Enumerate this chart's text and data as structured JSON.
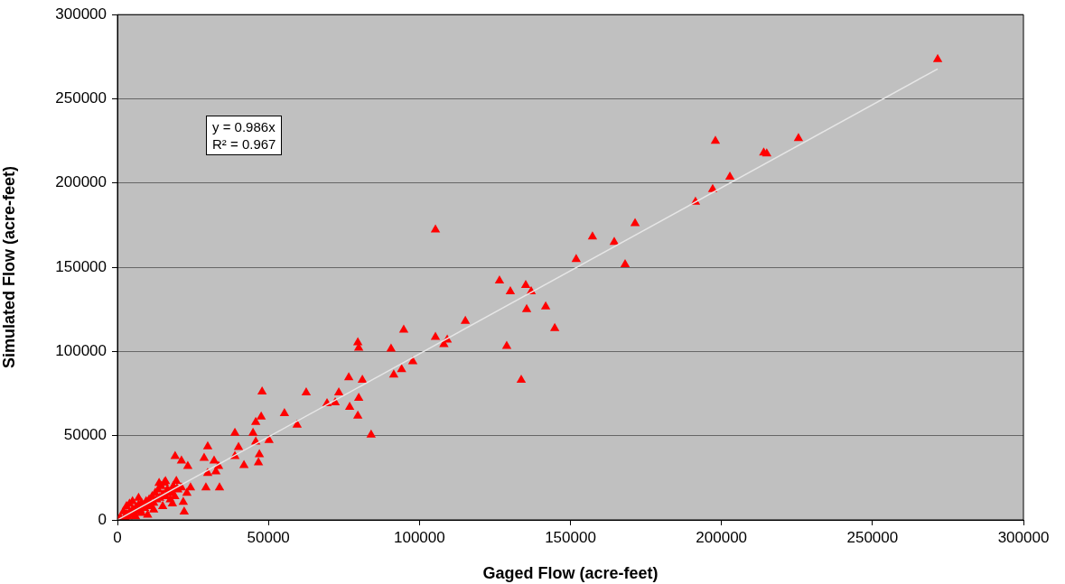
{
  "chart_data": {
    "type": "scatter",
    "xlabel": "Gaged Flow (acre-feet)",
    "ylabel": "Simulated Flow (acre-feet)",
    "annotations": [
      "y = 0.986x",
      "R² = 0.967"
    ],
    "xlim": [
      0,
      300000
    ],
    "xticks": [
      0,
      50000,
      100000,
      150000,
      200000,
      250000,
      300000
    ],
    "ylim": [
      0,
      300000
    ],
    "yticks": [
      0,
      50000,
      100000,
      150000,
      200000,
      250000,
      300000
    ],
    "grid": "y",
    "legend": false,
    "marker": "triangle",
    "series": [
      {
        "color": "#ff0000",
        "x": [
          271600,
          225500,
          198000,
          215000,
          214000,
          202800,
          197100,
          191400,
          171400,
          157300,
          164500,
          168100,
          151900,
          105300,
          126500,
          135200,
          130100,
          137000,
          141800,
          135500,
          144800,
          115200,
          94800,
          105300,
          109200,
          108100,
          128900,
          79600,
          79900,
          90600,
          97800,
          94100,
          91500,
          133700,
          76600,
          81100,
          47900,
          62500,
          73300,
          69400,
          72100,
          79900,
          76900,
          55300,
          47600,
          79600,
          45800,
          59500,
          38900,
          84000,
          44900,
          50200,
          45800,
          40100,
          29900,
          47000,
          38900,
          19100,
          21200,
          28700,
          32000,
          46700,
          41900,
          33500,
          23300,
          32600,
          29900,
          33800,
          29300,
          24200,
          21200,
          23000,
          22100,
          21800,
          13800,
          18200,
          15900,
          16800,
          19700,
          500,
          1000,
          2500,
          3000,
          3500,
          4000,
          4500,
          5000,
          5500,
          6000,
          6500,
          7000,
          7500,
          8000,
          9000,
          9500,
          10000,
          10500,
          11000,
          11500,
          12000,
          12500,
          13000,
          13500,
          14000,
          14500,
          15000,
          15500,
          16000,
          16500,
          17000,
          17500,
          18000,
          18500,
          19000,
          19500,
          20000,
          3000,
          5000,
          8000,
          10000,
          12000,
          15000,
          6000,
          2000,
          4000,
          7000
        ],
        "values": [
          273400,
          226600,
          225000,
          217500,
          218000,
          203700,
          196300,
          188800,
          176000,
          168100,
          164900,
          151600,
          154800,
          172300,
          142000,
          139400,
          135600,
          135600,
          126600,
          125000,
          113800,
          118100,
          112800,
          108500,
          106900,
          104300,
          103200,
          105300,
          102100,
          101600,
          94100,
          89400,
          86200,
          83000,
          84600,
          83000,
          76100,
          75500,
          75500,
          69100,
          69700,
          72300,
          67000,
          63300,
          61200,
          61700,
          58000,
          56400,
          51600,
          50500,
          51600,
          47300,
          46300,
          43100,
          43600,
          38800,
          37800,
          37800,
          35100,
          36700,
          35100,
          34000,
          32400,
          31900,
          31900,
          28700,
          27700,
          19100,
          19100,
          19100,
          19100,
          16000,
          4800,
          10600,
          21800,
          9600,
          22900,
          16000,
          18600,
          300,
          1200,
          1500,
          3500,
          2000,
          4500,
          3000,
          6000,
          4000,
          7000,
          5000,
          9000,
          6000,
          10000,
          7000,
          11000,
          9000,
          12000,
          8000,
          14000,
          10000,
          16000,
          12000,
          18000,
          13000,
          20000,
          15000,
          22000,
          14000,
          18000,
          17000,
          12000,
          16000,
          20000,
          14000,
          23000,
          18000,
          8000,
          11000,
          4000,
          3000,
          6000,
          8000,
          2000,
          5000,
          9500,
          13000
        ]
      },
      {
        "type": "line",
        "color": "#e6e6e6",
        "marker": "none",
        "x": [
          0,
          271600
        ],
        "values": [
          0,
          267800
        ]
      }
    ]
  }
}
